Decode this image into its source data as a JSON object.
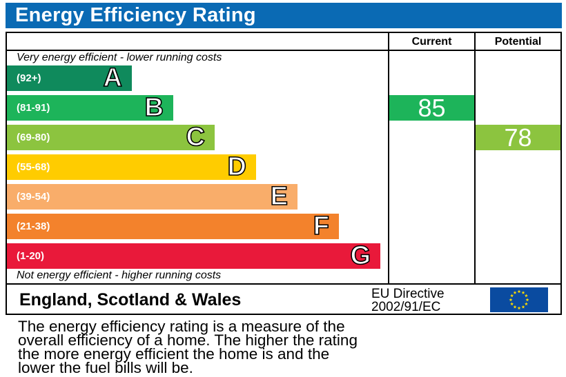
{
  "title": "Energy Efficiency Rating",
  "columns": {
    "current": "Current",
    "potential": "Potential"
  },
  "captions": {
    "top": "Very energy efficient - lower running costs",
    "bottom": "Not energy efficient - higher running costs"
  },
  "chart_data": {
    "type": "bar",
    "categories": [
      "A",
      "B",
      "C",
      "D",
      "E",
      "F",
      "G"
    ],
    "ranges": [
      "(92+)",
      "(81-91)",
      "(69-80)",
      "(55-68)",
      "(39-54)",
      "(21-38)",
      "(1-20)"
    ],
    "colors": [
      "#0f8a5c",
      "#1db45a",
      "#8cc43f",
      "#ffcc00",
      "#f9ad6a",
      "#f3822c",
      "#e9193a"
    ],
    "current": {
      "value": 85,
      "band": "B",
      "color": "#1db45a"
    },
    "potential": {
      "value": 78,
      "band": "C",
      "color": "#8cc43f"
    }
  },
  "footer": {
    "region": "England, Scotland & Wales",
    "directive_line1": "EU Directive",
    "directive_line2": "2002/91/EC"
  },
  "eu_flag": {
    "icon": "eu-flag-icon",
    "color": "#0a4ba0",
    "star_color": "#ffdd00"
  },
  "description": [
    "The energy efficiency rating is a measure of the",
    "overall efficiency of a home. The higher the rating",
    "the more energy efficient the home is and the",
    "lower the fuel bills will be."
  ]
}
